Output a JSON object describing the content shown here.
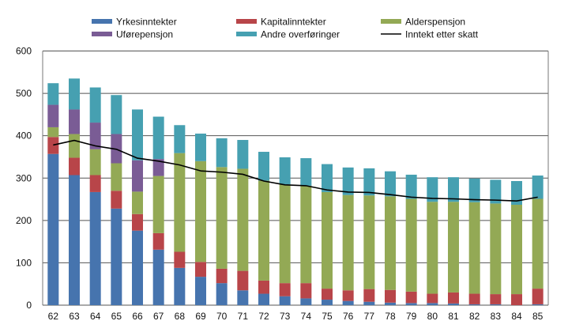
{
  "chart_data": {
    "type": "bar",
    "stacked": true,
    "title": "",
    "xlabel": "",
    "ylabel": "",
    "ylim": [
      0,
      600
    ],
    "yticks": [
      0,
      100,
      200,
      300,
      400,
      500,
      600
    ],
    "grid": true,
    "legend_position": "top",
    "categories": [
      "62",
      "63",
      "64",
      "65",
      "66",
      "67",
      "68",
      "69",
      "70",
      "71",
      "72",
      "73",
      "74",
      "75",
      "76",
      "77",
      "78",
      "79",
      "80",
      "81",
      "82",
      "83",
      "84",
      "85"
    ],
    "series": [
      {
        "name": "Yrkesinntekter",
        "color": "#4674ae",
        "values": [
          357,
          307,
          267,
          228,
          176,
          131,
          88,
          67,
          52,
          35,
          27,
          21,
          16,
          13,
          10,
          8,
          6,
          5,
          5,
          4,
          2,
          2,
          0,
          2
        ]
      },
      {
        "name": "Kapitalinntekter",
        "color": "#b84549",
        "values": [
          40,
          41,
          40,
          42,
          39,
          39,
          38,
          35,
          34,
          46,
          31,
          31,
          36,
          26,
          25,
          30,
          30,
          27,
          22,
          26,
          25,
          24,
          26,
          37
        ]
      },
      {
        "name": "Alderspensjon",
        "color": "#93a955",
        "values": [
          23,
          56,
          61,
          65,
          53,
          135,
          233,
          238,
          240,
          241,
          236,
          233,
          230,
          228,
          225,
          221,
          221,
          219,
          217,
          214,
          216,
          214,
          211,
          212
        ]
      },
      {
        "name": "Uførepensjon",
        "color": "#7a5c95",
        "values": [
          53,
          58,
          63,
          69,
          74,
          40,
          0,
          0,
          0,
          0,
          0,
          0,
          0,
          0,
          0,
          0,
          0,
          0,
          0,
          0,
          0,
          0,
          0,
          0
        ]
      },
      {
        "name": "Andre overføringer",
        "color": "#46a0b1",
        "values": [
          51,
          73,
          83,
          92,
          120,
          100,
          66,
          65,
          68,
          68,
          68,
          64,
          65,
          66,
          65,
          64,
          59,
          57,
          58,
          58,
          56,
          56,
          56,
          55
        ]
      }
    ],
    "line": {
      "name": "Inntekt etter skatt",
      "color": "#000000",
      "values": [
        378,
        389,
        376,
        368,
        347,
        340,
        331,
        317,
        314,
        309,
        293,
        284,
        282,
        272,
        267,
        266,
        261,
        255,
        252,
        251,
        249,
        248,
        246,
        255
      ]
    }
  }
}
